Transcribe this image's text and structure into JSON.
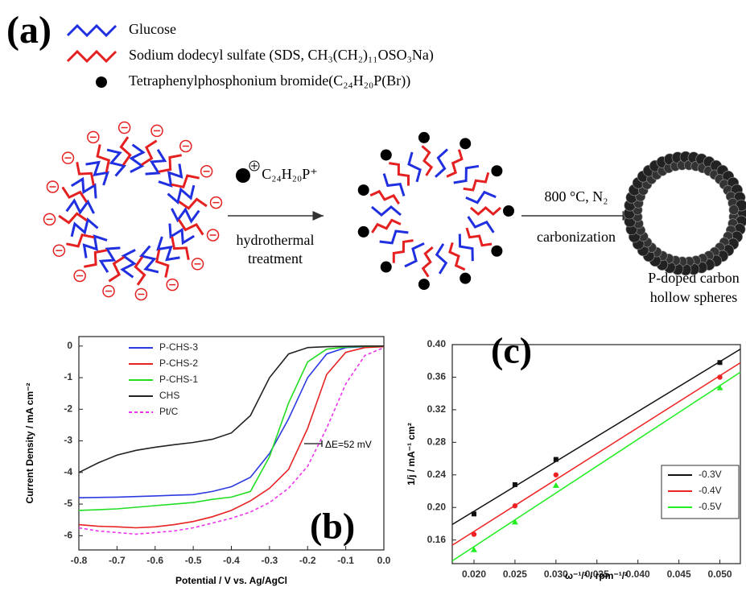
{
  "panel_a": {
    "label": "(a)",
    "legend": [
      "Glucose",
      "Sodium dodecyl sulfate (SDS, CH₃(CH₂)₁₁OSO₃Na)",
      "Tetraphenylphosphonium bromide(C₂₄H₂₀P(Br))"
    ],
    "reagent": "C₂₄H₂₀P⁺",
    "step1": [
      "hydrothermal",
      "treatment"
    ],
    "condition": "800 °C, N₂",
    "step2": "carbonization",
    "product": [
      "P-doped carbon",
      "hollow spheres"
    ]
  },
  "chart_data": [
    {
      "type": "line",
      "label": "(b)",
      "xlabel": "Potential / V vs. Ag/AgCl",
      "ylabel": "Current Density / mA cm⁻²",
      "annotation": "ΔE=52 mV",
      "legend": "upper left",
      "x": [
        -0.8,
        -0.75,
        -0.7,
        -0.65,
        -0.6,
        -0.55,
        -0.5,
        -0.45,
        -0.4,
        -0.35,
        -0.3,
        -0.25,
        -0.2,
        -0.15,
        -0.1,
        -0.05,
        0
      ],
      "xlim": [
        -0.8,
        0
      ],
      "ylim": [
        -6.45,
        0.3
      ],
      "xticks": [
        -0.8,
        -0.7,
        -0.6,
        -0.5,
        -0.4,
        -0.3,
        -0.2,
        -0.1,
        {
          "value": 0,
          "label": "0.0"
        }
      ],
      "yticks": [
        0,
        -1,
        -2,
        -3,
        -4,
        -5,
        -6
      ],
      "series": [
        {
          "name": "P-CHS-3",
          "color": "#2b3be0",
          "values": [
            -4.8,
            -4.79,
            -4.78,
            -4.76,
            -4.74,
            -4.72,
            -4.7,
            -4.6,
            -4.45,
            -4.15,
            -3.4,
            -2.3,
            -1.0,
            -0.25,
            -0.05,
            -0.02,
            0
          ]
        },
        {
          "name": "P-CHS-2",
          "color": "#e62222",
          "values": [
            -5.65,
            -5.7,
            -5.72,
            -5.75,
            -5.72,
            -5.65,
            -5.55,
            -5.4,
            -5.2,
            -4.9,
            -4.5,
            -3.9,
            -2.6,
            -0.9,
            -0.2,
            -0.05,
            -0.02
          ]
        },
        {
          "name": "P-CHS-1",
          "color": "#22dd22",
          "values": [
            -5.2,
            -5.18,
            -5.15,
            -5.1,
            -5.05,
            -5.0,
            -4.95,
            -4.85,
            -4.78,
            -4.6,
            -3.5,
            -1.8,
            -0.5,
            -0.1,
            -0.03,
            -0.01,
            0
          ]
        },
        {
          "name": "CHS",
          "color": "#222222",
          "values": [
            -4.0,
            -3.7,
            -3.45,
            -3.3,
            -3.2,
            -3.12,
            -3.05,
            -2.95,
            -2.75,
            -2.2,
            -1.0,
            -0.25,
            -0.05,
            -0.02,
            -0.01,
            0,
            0
          ]
        },
        {
          "name": "Pt/C",
          "color": "#ee33ee",
          "dashed": true,
          "values": [
            -5.75,
            -5.85,
            -5.9,
            -5.95,
            -5.9,
            -5.85,
            -5.75,
            -5.6,
            -5.45,
            -5.25,
            -4.95,
            -4.5,
            -3.8,
            -2.6,
            -1.2,
            -0.3,
            -0.05
          ]
        }
      ]
    },
    {
      "type": "scatter",
      "label": "(c)",
      "xlabel": "ω⁻¹/² / rpm⁻¹/²",
      "ylabel": "1/j / mA⁻¹ cm²",
      "legend": "lower right",
      "fit": true,
      "x": [
        0.02,
        0.025,
        0.03,
        0.05
      ],
      "xlim": [
        0.01735,
        0.0525
      ],
      "ylim": [
        0.131,
        0.4
      ],
      "xticks": [
        {
          "value": 0.02,
          "label": "0.020"
        },
        0.025,
        {
          "value": 0.03,
          "label": "0.030"
        },
        0.035,
        {
          "value": 0.04,
          "label": "0.040"
        },
        0.045,
        {
          "value": 0.05,
          "label": "0.050"
        }
      ],
      "yticks": [
        0.16,
        {
          "value": 0.2,
          "label": "0.20"
        },
        0.24,
        0.28,
        0.32,
        0.36,
        {
          "value": 0.4,
          "label": "0.40"
        }
      ],
      "series": [
        {
          "name": "-0.3V",
          "color": "#111111",
          "marker": "square",
          "values": [
            0.192,
            0.228,
            0.259,
            0.378
          ]
        },
        {
          "name": "-0.4V",
          "color": "#ee2222",
          "marker": "circle",
          "values": [
            0.167,
            0.202,
            0.24,
            0.36
          ]
        },
        {
          "name": "-0.5V",
          "color": "#22ee22",
          "marker": "triangle",
          "values": [
            0.148,
            0.182,
            0.227,
            0.347
          ]
        }
      ]
    }
  ]
}
